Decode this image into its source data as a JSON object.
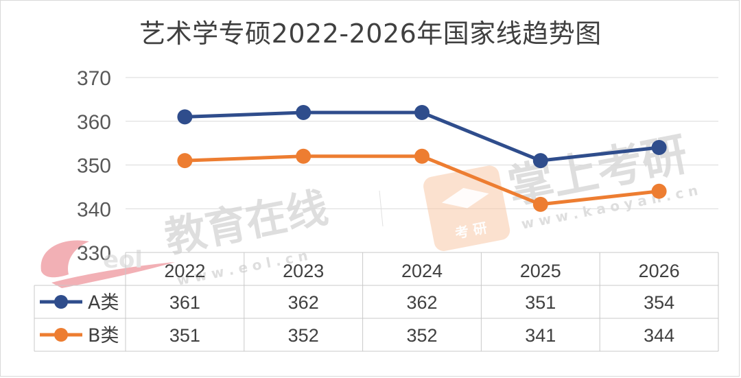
{
  "chart_data": {
    "type": "line",
    "title": "艺术学专硕2022-2026年国家线趋势图",
    "categories": [
      "2022",
      "2023",
      "2024",
      "2025",
      "2026"
    ],
    "series": [
      {
        "name": "A类",
        "values": [
          361,
          362,
          362,
          351,
          354
        ],
        "color": "#2f4d8c"
      },
      {
        "name": "B类",
        "values": [
          351,
          352,
          352,
          341,
          344
        ],
        "color": "#ed7d31"
      }
    ],
    "yticks": [
      "330",
      "340",
      "350",
      "360",
      "370"
    ],
    "ylim": [
      330,
      370
    ],
    "grid": true,
    "legend": "data-table"
  },
  "watermarks": {
    "eol_text": "教育在线",
    "eol_url": "w w w . e o l . c n",
    "eol_logo": "eol",
    "kaoyan_text": "掌上考研",
    "kaoyan_url": "w w w . k a o y a n . c n",
    "kaoyan_badge": "考  研",
    "color": "#d9d9d9"
  }
}
